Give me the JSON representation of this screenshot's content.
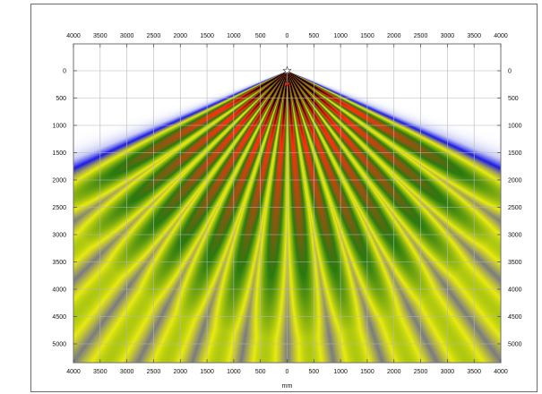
{
  "window": {
    "frame_color": "#6a6a6a"
  },
  "chart_data": {
    "type": "heatmap",
    "title": "",
    "xlabel": "mm",
    "ylabel": "",
    "xlim": [
      -4000,
      4000
    ],
    "ylim": [
      0,
      5000
    ],
    "y_inverted": true,
    "grid": true,
    "x_ticks": [
      -4000,
      -3500,
      -3000,
      -2500,
      -2000,
      -1500,
      -1000,
      -500,
      0,
      500,
      1000,
      1500,
      2000,
      2500,
      3000,
      3500,
      4000
    ],
    "x_tick_labels": [
      "4000",
      "3500",
      "3000",
      "2500",
      "2000",
      "1500",
      "1000",
      "500",
      "0",
      "500",
      "1000",
      "1500",
      "2000",
      "2500",
      "3000",
      "3500",
      "4000"
    ],
    "y_ticks": [
      0,
      500,
      1000,
      1500,
      2000,
      2500,
      3000,
      3500,
      4000,
      4500,
      5000
    ],
    "y_tick_labels": [
      "0",
      "500",
      "1000",
      "1500",
      "2000",
      "2500",
      "3000",
      "3500",
      "4000",
      "4500",
      "5000"
    ],
    "source": {
      "x": 0,
      "y": 0,
      "marker": "star"
    },
    "secondary_marker": {
      "x": 0,
      "y": 250,
      "color": "#e02020"
    },
    "beams": {
      "count": 14,
      "angle_min_deg": -60,
      "angle_max_deg": 60,
      "reach_mm": 4900
    },
    "colormap": [
      {
        "level": 0.0,
        "color": "#ffffff"
      },
      {
        "level": 0.12,
        "color": "#c8ccf5"
      },
      {
        "level": 0.3,
        "color": "#1a1ae6"
      },
      {
        "level": 0.52,
        "color": "#e8ea10"
      },
      {
        "level": 0.68,
        "color": "#2a7a10"
      },
      {
        "level": 0.84,
        "color": "#ff3010"
      },
      {
        "level": 1.0,
        "color": "#000000"
      }
    ]
  }
}
